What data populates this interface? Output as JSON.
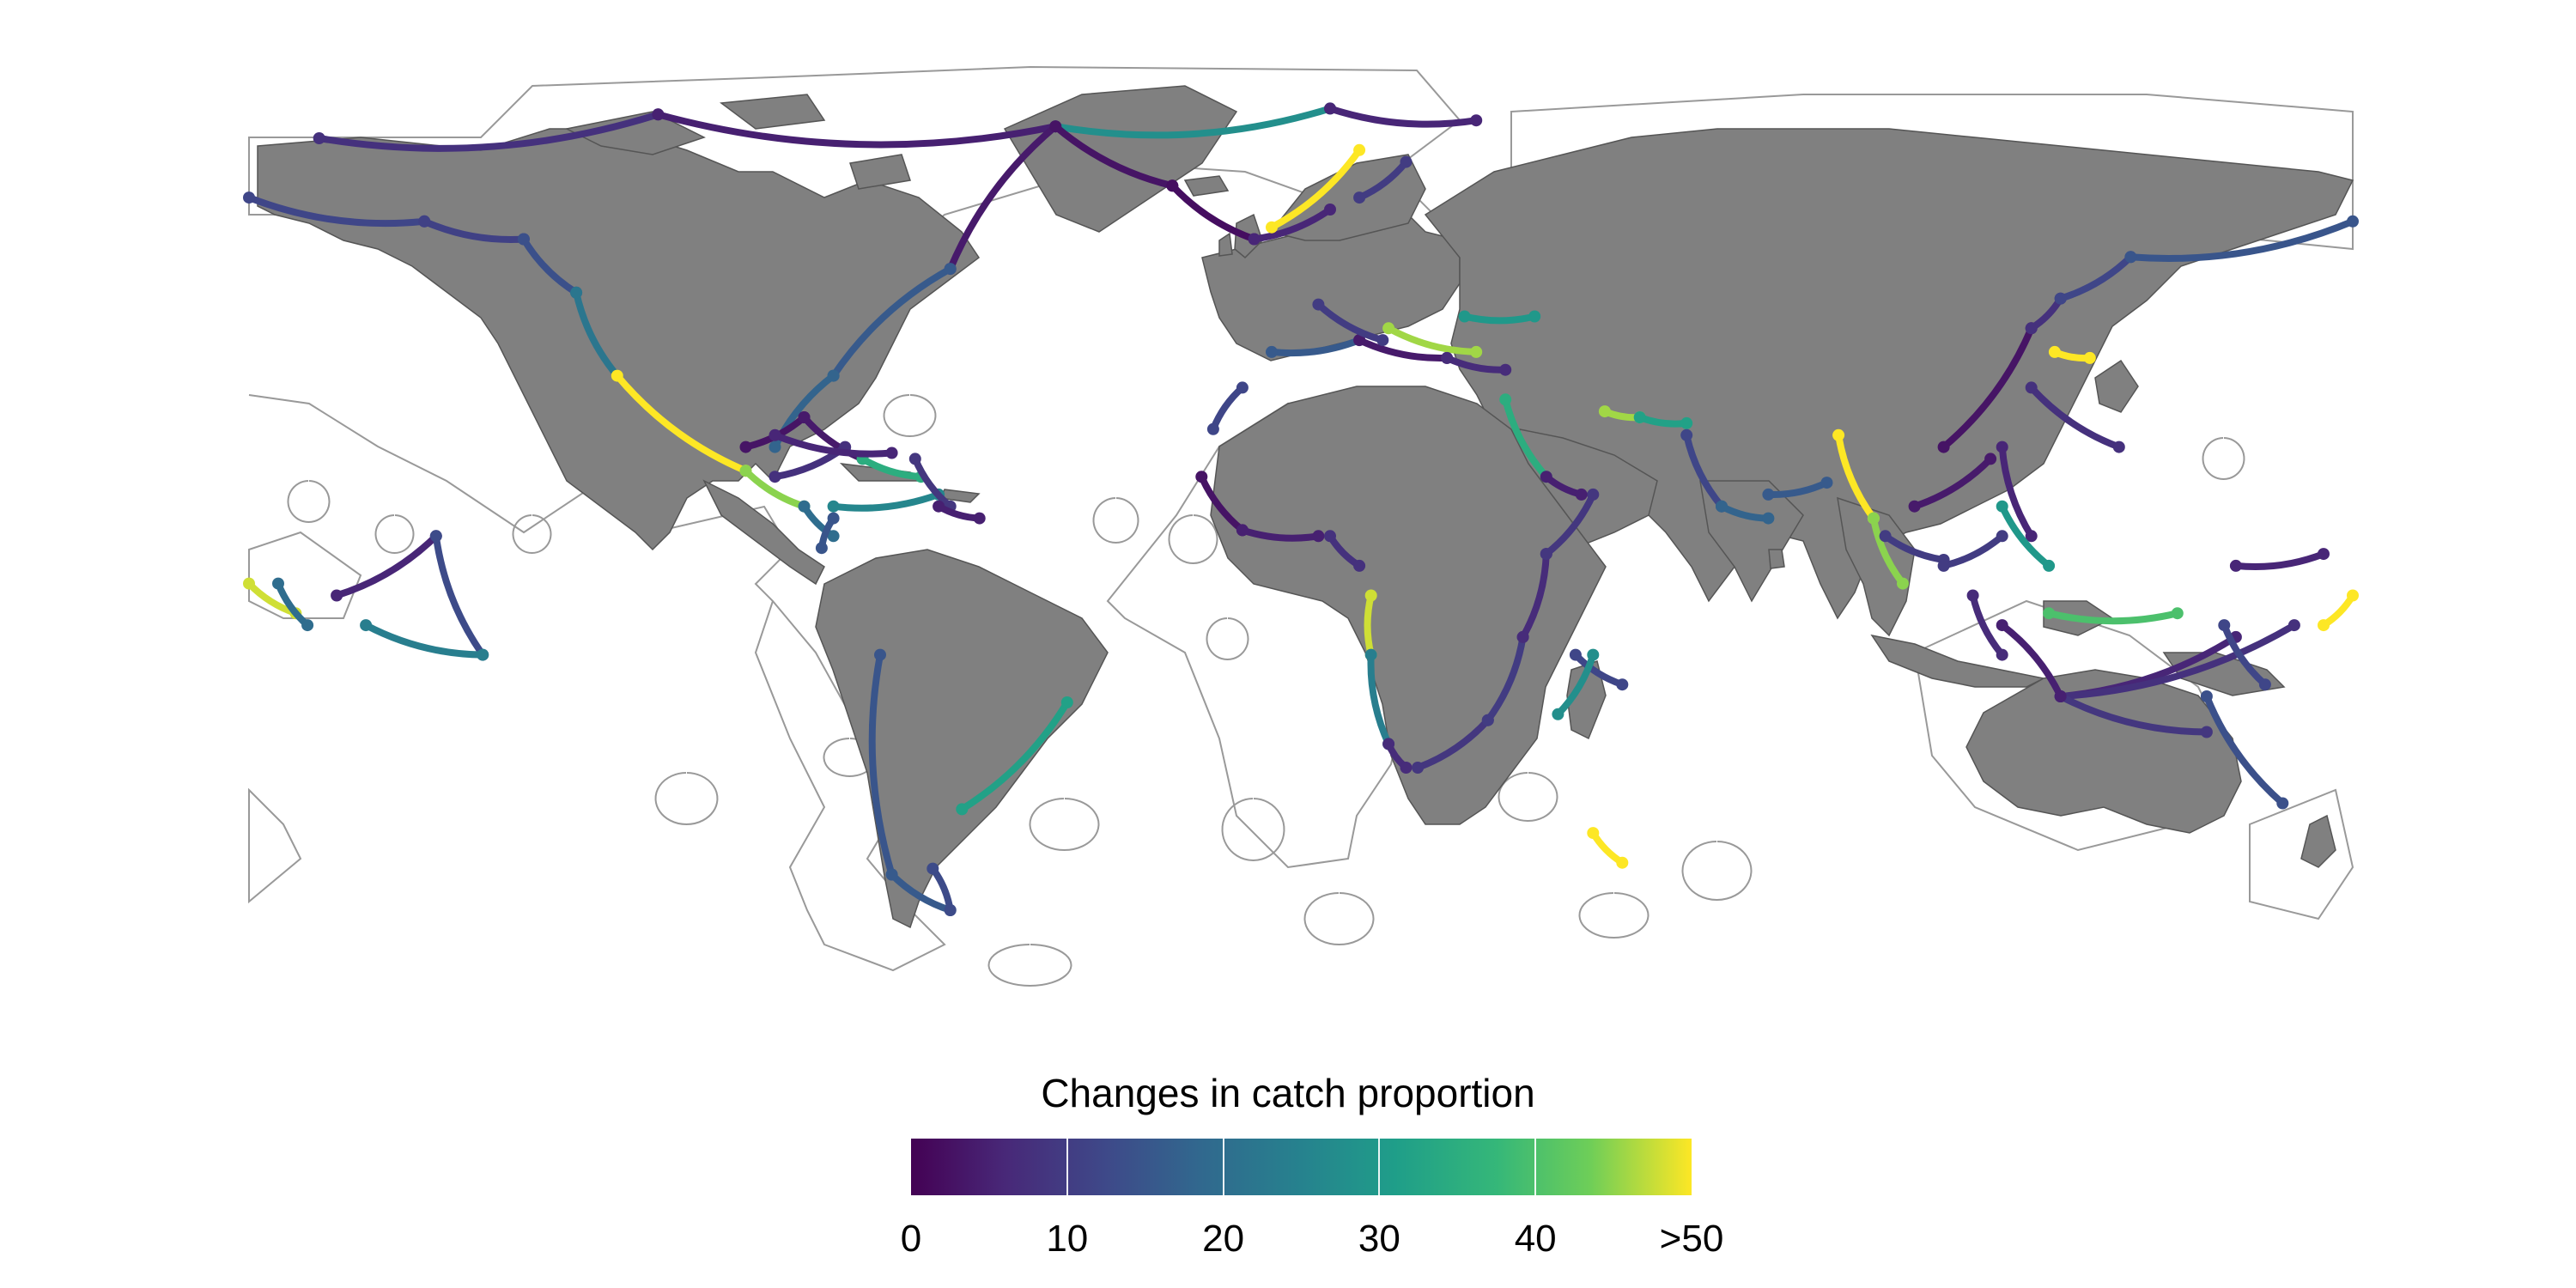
{
  "legend": {
    "title": "Changes in catch proportion",
    "ticks": [
      "0",
      "10",
      "20",
      "30",
      "40",
      ">50"
    ],
    "domain": [
      0,
      50
    ],
    "colors": [
      "#440154",
      "#3b528b",
      "#21918c",
      "#5ec962",
      "#fde725"
    ]
  },
  "map": {
    "land_color": "#808080",
    "border_color": "#555555",
    "eez_color": "#999999",
    "projection": "equirectangular"
  },
  "flows": [
    {
      "from": [
        -168,
        72
      ],
      "to": [
        -110,
        76
      ],
      "v": 8
    },
    {
      "from": [
        -110,
        76
      ],
      "to": [
        -42,
        74
      ],
      "v": 5
    },
    {
      "from": [
        -42,
        74
      ],
      "to": [
        5,
        77
      ],
      "v": 28
    },
    {
      "from": [
        5,
        77
      ],
      "to": [
        30,
        75
      ],
      "v": 6
    },
    {
      "from": [
        -42,
        74
      ],
      "to": [
        -60,
        50
      ],
      "v": 4
    },
    {
      "from": [
        -60,
        50
      ],
      "to": [
        -80,
        32
      ],
      "v": 16
    },
    {
      "from": [
        -80,
        32
      ],
      "to": [
        -90,
        20
      ],
      "v": 18
    },
    {
      "from": [
        -42,
        74
      ],
      "to": [
        -22,
        64
      ],
      "v": 3
    },
    {
      "from": [
        -22,
        64
      ],
      "to": [
        -8,
        55
      ],
      "v": 2
    },
    {
      "from": [
        -8,
        55
      ],
      "to": [
        5,
        60
      ],
      "v": 6
    },
    {
      "from": [
        -5,
        57
      ],
      "to": [
        10,
        70
      ],
      "v": 50
    },
    {
      "from": [
        10,
        62
      ],
      "to": [
        18,
        68
      ],
      "v": 10
    },
    {
      "from": [
        -180,
        62
      ],
      "to": [
        -150,
        58
      ],
      "v": 12
    },
    {
      "from": [
        -150,
        58
      ],
      "to": [
        -133,
        55
      ],
      "v": 11
    },
    {
      "from": [
        -133,
        55
      ],
      "to": [
        -124,
        46
      ],
      "v": 14
    },
    {
      "from": [
        -124,
        46
      ],
      "to": [
        -117,
        32
      ],
      "v": 22
    },
    {
      "from": [
        -117,
        32
      ],
      "to": [
        -95,
        16
      ],
      "v": 50
    },
    {
      "from": [
        -95,
        16
      ],
      "to": [
        -85,
        10
      ],
      "v": 45
    },
    {
      "from": [
        -85,
        10
      ],
      "to": [
        -80,
        5
      ],
      "v": 20
    },
    {
      "from": [
        -95,
        20
      ],
      "to": [
        -85,
        25
      ],
      "v": 3
    },
    {
      "from": [
        -85,
        25
      ],
      "to": [
        -75,
        18
      ],
      "v": 4
    },
    {
      "from": [
        -75,
        18
      ],
      "to": [
        -65,
        15
      ],
      "v": 35
    },
    {
      "from": [
        -90,
        15
      ],
      "to": [
        -78,
        20
      ],
      "v": 8
    },
    {
      "from": [
        -80,
        10
      ],
      "to": [
        -62,
        12
      ],
      "v": 26
    },
    {
      "from": [
        -90,
        22
      ],
      "to": [
        -70,
        19
      ],
      "v": 6
    },
    {
      "from": [
        -66,
        18
      ],
      "to": [
        -60,
        10
      ],
      "v": 9
    },
    {
      "from": [
        -80,
        8
      ],
      "to": [
        -82,
        3
      ],
      "v": 15
    },
    {
      "from": [
        -62,
        10
      ],
      "to": [
        -55,
        8
      ],
      "v": 5
    },
    {
      "from": [
        -72,
        -15
      ],
      "to": [
        -70,
        -52
      ],
      "v": 15
    },
    {
      "from": [
        -70,
        -52
      ],
      "to": [
        -60,
        -58
      ],
      "v": 16
    },
    {
      "from": [
        -60,
        -58
      ],
      "to": [
        -63,
        -51
      ],
      "v": 13
    },
    {
      "from": [
        -58,
        -41
      ],
      "to": [
        -40,
        -23
      ],
      "v": 32
    },
    {
      "from": [
        -5,
        36
      ],
      "to": [
        10,
        38
      ],
      "v": 16
    },
    {
      "from": [
        10,
        38
      ],
      "to": [
        25,
        35
      ],
      "v": 4
    },
    {
      "from": [
        15,
        40
      ],
      "to": [
        30,
        36
      ],
      "v": 46
    },
    {
      "from": [
        25,
        35
      ],
      "to": [
        35,
        33
      ],
      "v": 7
    },
    {
      "from": [
        28,
        42
      ],
      "to": [
        40,
        42
      ],
      "v": 30
    },
    {
      "from": [
        3,
        44
      ],
      "to": [
        14,
        38
      ],
      "v": 10
    },
    {
      "from": [
        -10,
        30
      ],
      "to": [
        -15,
        23
      ],
      "v": 12
    },
    {
      "from": [
        -17,
        15
      ],
      "to": [
        -10,
        6
      ],
      "v": 3
    },
    {
      "from": [
        -10,
        6
      ],
      "to": [
        3,
        5
      ],
      "v": 5
    },
    {
      "from": [
        5,
        5
      ],
      "to": [
        10,
        0
      ],
      "v": 8
    },
    {
      "from": [
        12,
        -5
      ],
      "to": [
        12,
        -15
      ],
      "v": 48
    },
    {
      "from": [
        12,
        -15
      ],
      "to": [
        15,
        -30
      ],
      "v": 24
    },
    {
      "from": [
        15,
        -30
      ],
      "to": [
        18,
        -34
      ],
      "v": 7
    },
    {
      "from": [
        20,
        -34
      ],
      "to": [
        32,
        -26
      ],
      "v": 9
    },
    {
      "from": [
        32,
        -26
      ],
      "to": [
        38,
        -12
      ],
      "v": 10
    },
    {
      "from": [
        38,
        -12
      ],
      "to": [
        42,
        2
      ],
      "v": 7
    },
    {
      "from": [
        42,
        2
      ],
      "to": [
        50,
        12
      ],
      "v": 9
    },
    {
      "from": [
        47,
        -15
      ],
      "to": [
        55,
        -20
      ],
      "v": 12
    },
    {
      "from": [
        44,
        -25
      ],
      "to": [
        50,
        -15
      ],
      "v": 28
    },
    {
      "from": [
        35,
        28
      ],
      "to": [
        42,
        15
      ],
      "v": 35
    },
    {
      "from": [
        42,
        15
      ],
      "to": [
        48,
        12
      ],
      "v": 5
    },
    {
      "from": [
        52,
        26
      ],
      "to": [
        58,
        25
      ],
      "v": 46
    },
    {
      "from": [
        58,
        25
      ],
      "to": [
        66,
        24
      ],
      "v": 32
    },
    {
      "from": [
        66,
        22
      ],
      "to": [
        72,
        10
      ],
      "v": 12
    },
    {
      "from": [
        72,
        10
      ],
      "to": [
        80,
        8
      ],
      "v": 18
    },
    {
      "from": [
        80,
        12
      ],
      "to": [
        90,
        14
      ],
      "v": 16
    },
    {
      "from": [
        92,
        22
      ],
      "to": [
        98,
        8
      ],
      "v": 50
    },
    {
      "from": [
        98,
        8
      ],
      "to": [
        103,
        -3
      ],
      "v": 45
    },
    {
      "from": [
        100,
        5
      ],
      "to": [
        110,
        1
      ],
      "v": 10
    },
    {
      "from": [
        105,
        10
      ],
      "to": [
        118,
        18
      ],
      "v": 4
    },
    {
      "from": [
        110,
        20
      ],
      "to": [
        125,
        40
      ],
      "v": 3
    },
    {
      "from": [
        125,
        40
      ],
      "to": [
        130,
        45
      ],
      "v": 8
    },
    {
      "from": [
        130,
        45
      ],
      "to": [
        142,
        52
      ],
      "v": 12
    },
    {
      "from": [
        142,
        52
      ],
      "to": [
        180,
        58
      ],
      "v": 15
    },
    {
      "from": [
        129,
        36
      ],
      "to": [
        135,
        35
      ],
      "v": 50
    },
    {
      "from": [
        125,
        30
      ],
      "to": [
        140,
        20
      ],
      "v": 8
    },
    {
      "from": [
        120,
        20
      ],
      "to": [
        125,
        5
      ],
      "v": 6
    },
    {
      "from": [
        120,
        10
      ],
      "to": [
        128,
        0
      ],
      "v": 30
    },
    {
      "from": [
        110,
        0
      ],
      "to": [
        120,
        5
      ],
      "v": 10
    },
    {
      "from": [
        115,
        -5
      ],
      "to": [
        120,
        -15
      ],
      "v": 7
    },
    {
      "from": [
        128,
        -8
      ],
      "to": [
        150,
        -8
      ],
      "v": 40
    },
    {
      "from": [
        130,
        -22
      ],
      "to": [
        160,
        -12
      ],
      "v": 6
    },
    {
      "from": [
        130,
        -22
      ],
      "to": [
        170,
        -10
      ],
      "v": 8
    },
    {
      "from": [
        130,
        -22
      ],
      "to": [
        155,
        -28
      ],
      "v": 9
    },
    {
      "from": [
        130,
        -22
      ],
      "to": [
        120,
        -10
      ],
      "v": 5
    },
    {
      "from": [
        155,
        -22
      ],
      "to": [
        168,
        -40
      ],
      "v": 14
    },
    {
      "from": [
        158,
        -10
      ],
      "to": [
        165,
        -20
      ],
      "v": 12
    },
    {
      "from": [
        160,
        0
      ],
      "to": [
        175,
        2
      ],
      "v": 6
    },
    {
      "from": [
        175,
        -10
      ],
      "to": [
        180,
        -5
      ],
      "v": 50
    },
    {
      "from": [
        -180,
        -3
      ],
      "to": [
        -172,
        -8
      ],
      "v": 48
    },
    {
      "from": [
        -175,
        -3
      ],
      "to": [
        -170,
        -10
      ],
      "v": 20
    },
    {
      "from": [
        -165,
        -5
      ],
      "to": [
        -148,
        5
      ],
      "v": 6
    },
    {
      "from": [
        -148,
        5
      ],
      "to": [
        -140,
        -15
      ],
      "v": 13
    },
    {
      "from": [
        -160,
        -10
      ],
      "to": [
        -140,
        -15
      ],
      "v": 24
    },
    {
      "from": [
        50,
        -45
      ],
      "to": [
        55,
        -50
      ],
      "v": 50
    }
  ]
}
